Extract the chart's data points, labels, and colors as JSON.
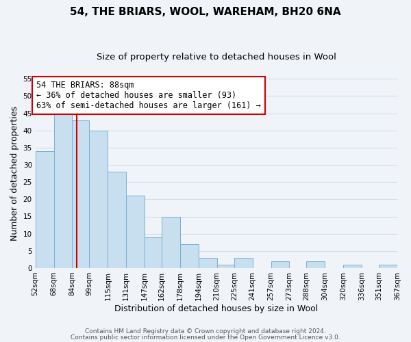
{
  "title": "54, THE BRIARS, WOOL, WAREHAM, BH20 6NA",
  "subtitle": "Size of property relative to detached houses in Wool",
  "xlabel": "Distribution of detached houses by size in Wool",
  "ylabel": "Number of detached properties",
  "bin_edges": [
    52,
    68,
    84,
    99,
    115,
    131,
    147,
    162,
    178,
    194,
    210,
    225,
    241,
    257,
    273,
    288,
    304,
    320,
    336,
    351,
    367
  ],
  "bin_labels": [
    "52sqm",
    "68sqm",
    "84sqm",
    "99sqm",
    "115sqm",
    "131sqm",
    "147sqm",
    "162sqm",
    "178sqm",
    "194sqm",
    "210sqm",
    "225sqm",
    "241sqm",
    "257sqm",
    "273sqm",
    "288sqm",
    "304sqm",
    "320sqm",
    "336sqm",
    "351sqm",
    "367sqm"
  ],
  "counts": [
    34,
    46,
    43,
    40,
    28,
    21,
    9,
    15,
    7,
    3,
    1,
    3,
    0,
    2,
    0,
    2,
    0,
    1,
    0,
    1
  ],
  "bar_color": "#c8dff0",
  "bar_edge_color": "#7aafd4",
  "property_value": 88,
  "vline_color": "#cc0000",
  "annotation_line1": "54 THE BRIARS: 88sqm",
  "annotation_line2": "← 36% of detached houses are smaller (93)",
  "annotation_line3": "63% of semi-detached houses are larger (161) →",
  "annotation_box_color": "white",
  "annotation_box_edge_color": "#cc0000",
  "ylim": [
    0,
    55
  ],
  "yticks": [
    0,
    5,
    10,
    15,
    20,
    25,
    30,
    35,
    40,
    45,
    50,
    55
  ],
  "footer_line1": "Contains HM Land Registry data © Crown copyright and database right 2024.",
  "footer_line2": "Contains public sector information licensed under the Open Government Licence v3.0.",
  "title_fontsize": 11,
  "subtitle_fontsize": 9.5,
  "axis_label_fontsize": 9,
  "tick_fontsize": 7.5,
  "annotation_fontsize": 8.5,
  "footer_fontsize": 6.5,
  "background_color": "#f0f4f8",
  "grid_color": "#d0dce8"
}
